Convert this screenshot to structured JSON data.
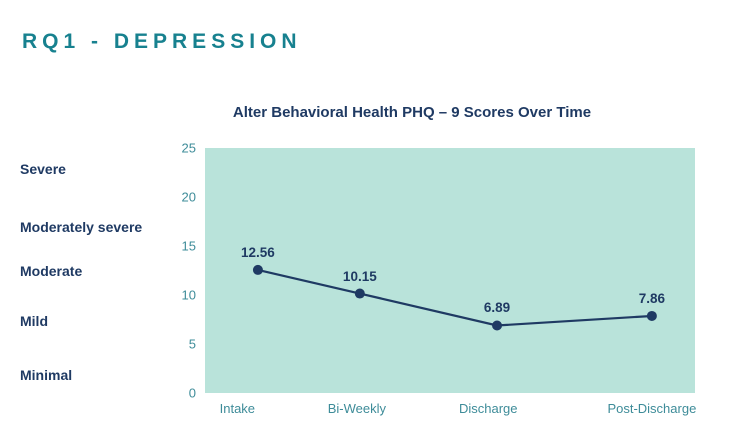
{
  "page": {
    "title": "RQ1 - DEPRESSION"
  },
  "colors": {
    "heading_teal": "#17818f",
    "navy": "#1f3a63",
    "plot_bg": "#b9e3da",
    "tick_teal": "#3e8c99"
  },
  "chart_data": {
    "type": "line",
    "title": "Alter Behavioral Health PHQ – 9 Scores Over Time",
    "categories": [
      "Intake",
      "Bi-Weekly",
      "Discharge",
      "Post-Discharge"
    ],
    "values": [
      12.56,
      10.15,
      6.89,
      7.86
    ],
    "data_labels": [
      "12.56",
      "10.15",
      "6.89",
      "7.86"
    ],
    "ylim": [
      0,
      25
    ],
    "yticks": [
      25,
      20,
      15,
      10,
      5,
      0
    ],
    "severity_labels": [
      "Severe",
      "Moderately severe",
      "Moderate",
      "Mild",
      "Minimal"
    ],
    "xlabel": "",
    "ylabel": "",
    "grid": false,
    "legend": false,
    "line_color": "#1f3a63",
    "plot_background": "#b9e3da"
  }
}
